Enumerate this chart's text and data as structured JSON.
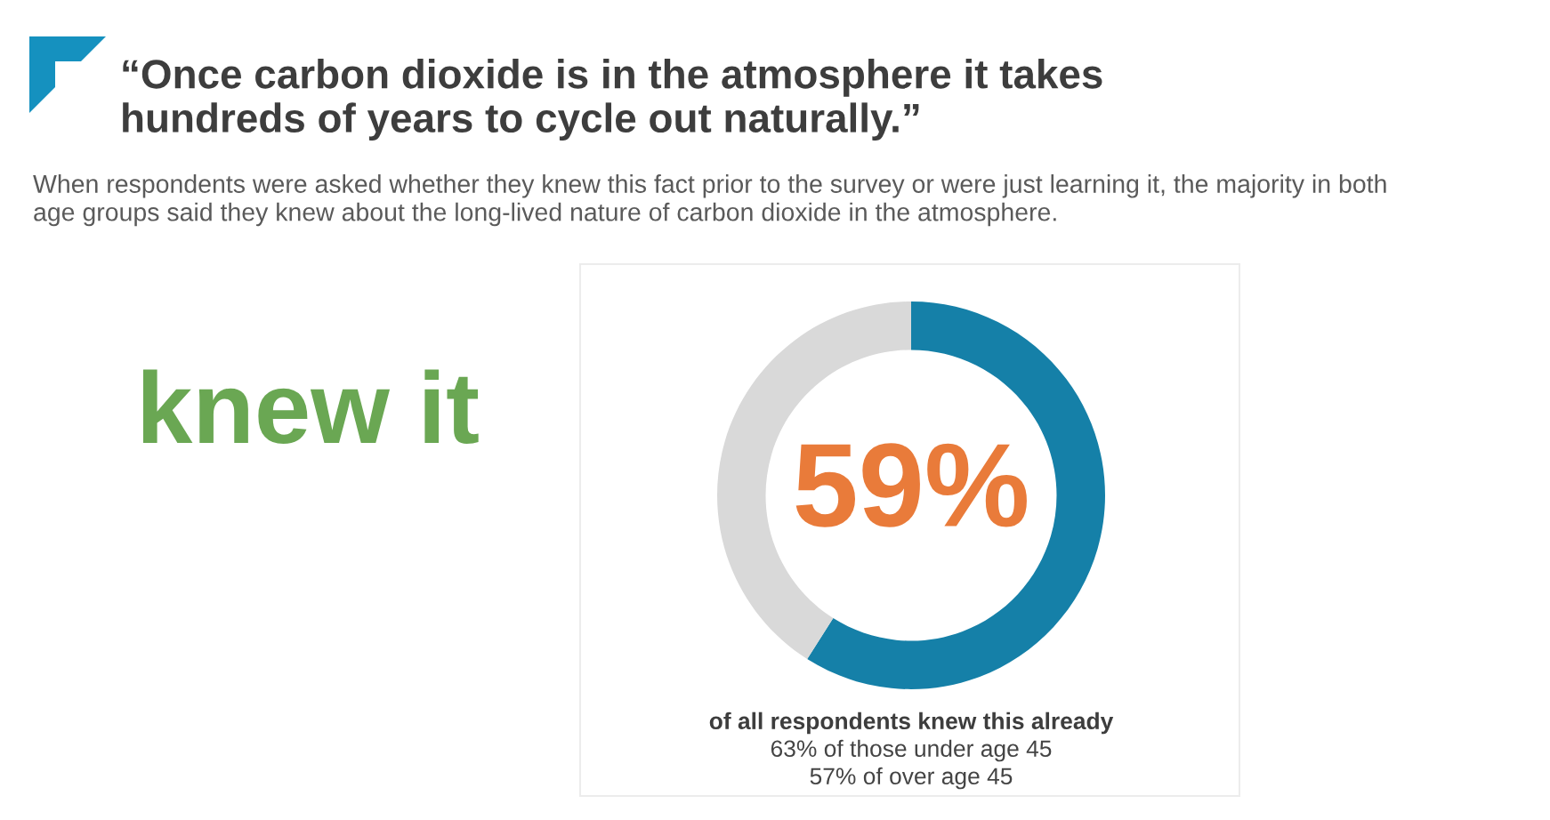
{
  "chart_data": {
    "type": "donut",
    "title": "“Once carbon dioxide is in the atmosphere it takes\nhundreds of years to cycle out naturally.”",
    "subtitle": "When respondents were asked whether they knew this fact prior to the survey or were just learning it, the majority in both\nage groups said they knew about the long-lived nature of carbon dioxide in the atmosphere.",
    "categories": [
      null,
      null
    ],
    "values": [
      59,
      41
    ],
    "colors": [
      "#1580a8",
      "#d9d9d9"
    ],
    "value_labels": [
      "59%",
      null
    ],
    "annotations": [
      "knew it",
      "of all respondents knew this already",
      "63% of those under age 45",
      "57% of over age 45"
    ]
  }
}
